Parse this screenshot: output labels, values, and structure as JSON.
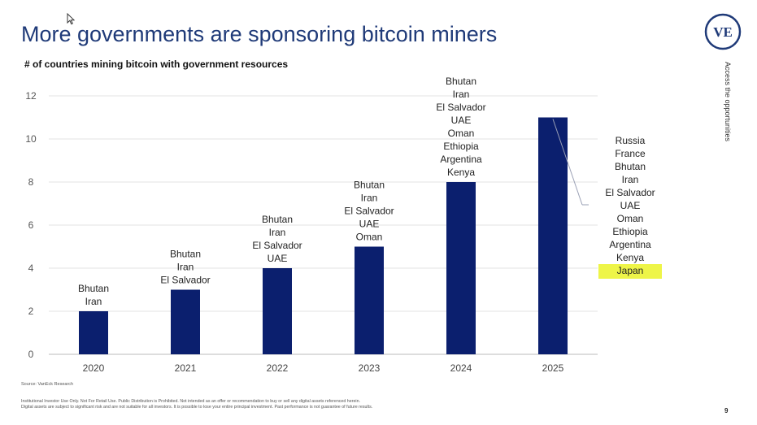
{
  "title": "More governments are sponsoring bitcoin miners",
  "logo_text": "VE",
  "side_text": "Access the opportunities",
  "source": "Source: VanEck Research",
  "disclaimer": [
    "Institutional Investor Use Only. Not For Retail Use. Public Distribution is Prohibited. Not intended as an offer or recommendation to buy or sell any digital assets referenced herein.",
    "Digital assets are subject to significant risk and are not suitable for all investors. It is possible to lose your entire principal investment. Past performance is not guarantee of future results."
  ],
  "page_number": "9",
  "colors": {
    "bar": "#0b1f6e",
    "title": "#1f3a78",
    "highlight": "#eef548"
  },
  "chart_data": {
    "type": "bar",
    "title": "# of countries mining bitcoin with government resources",
    "xlabel": "",
    "ylabel": "",
    "categories": [
      "2020",
      "2021",
      "2022",
      "2023",
      "2024",
      "2025"
    ],
    "values": [
      2,
      3,
      4,
      5,
      8,
      11
    ],
    "ylim": [
      0,
      12
    ],
    "yticks": [
      0,
      2,
      4,
      6,
      8,
      10,
      12
    ],
    "grid": true,
    "labels": [
      [
        "Bhutan",
        "Iran"
      ],
      [
        "Bhutan",
        "Iran",
        "El Salvador"
      ],
      [
        "Bhutan",
        "Iran",
        "El Salvador",
        "UAE"
      ],
      [
        "Bhutan",
        "Iran",
        "El Salvador",
        "UAE",
        "Oman"
      ],
      [
        "Bhutan",
        "Iran",
        "El Salvador",
        "UAE",
        "Oman",
        "Ethiopia",
        "Argentina",
        "Kenya"
      ],
      [
        "Russia",
        "France",
        "Bhutan",
        "Iran",
        "El Salvador",
        "UAE",
        "Oman",
        "Ethiopia",
        "Argentina",
        "Kenya",
        "Japan"
      ]
    ],
    "highlighted": "Japan"
  }
}
